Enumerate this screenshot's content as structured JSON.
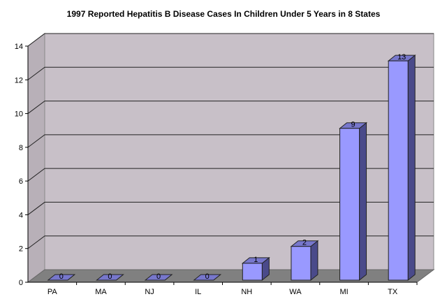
{
  "chart_data": {
    "type": "bar",
    "title": "1997 Reported Hepatitis B Disease Cases In Children Under 5 Years in 8 States",
    "xlabel": "",
    "ylabel": "",
    "categories": [
      "PA",
      "MA",
      "NJ",
      "IL",
      "NH",
      "WA",
      "MI",
      "TX"
    ],
    "values": [
      0,
      0,
      0,
      0,
      1,
      2,
      9,
      13
    ],
    "ylim": [
      0,
      14
    ],
    "yticks": [
      0,
      2,
      4,
      6,
      8,
      10,
      12,
      14
    ],
    "grid": true,
    "legend": "none",
    "colors": {
      "bar_front": "#9999ff",
      "bar_side": "#4a4a8a",
      "bar_top": "#7777cc",
      "wall": "#c8c0c8",
      "floor": "#808080"
    }
  }
}
